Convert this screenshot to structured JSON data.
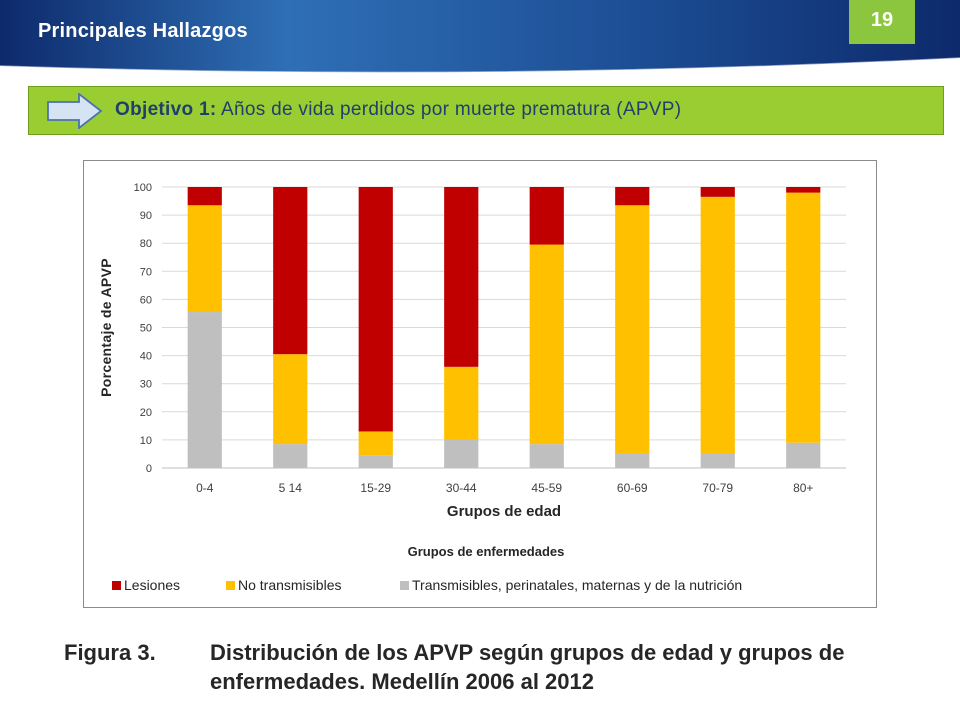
{
  "slide": {
    "title": "Principales Hallazgos",
    "page_number": "19",
    "objective_label": "Objetivo 1:",
    "objective_text": "Años de vida perdidos por muerte prematura (APVP)",
    "caption_label": "Figura 3.",
    "caption_text": "Distribución de los APVP según grupos de edad y grupos de enfermedades. Medellín 2006 al 2012"
  },
  "colors": {
    "header_dark": "#0d2a6b",
    "header_light": "#2f6fb5",
    "accent_green": "#8cc63f",
    "objective_bg": "#9acd32",
    "lesiones": "#c00000",
    "no_transmisibles": "#ffc000",
    "transmisibles": "#bfbfbf"
  },
  "chart_data": {
    "type": "bar",
    "stacked": true,
    "categories": [
      "0-4",
      "5 14",
      "15-29",
      "30-44",
      "45-59",
      "60-69",
      "70-79",
      "80+"
    ],
    "series": [
      {
        "name": "Transmisibles, perinatales, maternas y de la nutrición",
        "color": "#bfbfbf",
        "values": [
          55.5,
          8.5,
          4.5,
          10,
          8.5,
          5,
          5,
          9
        ]
      },
      {
        "name": "No transmisibles",
        "color": "#ffc000",
        "values": [
          38,
          32,
          8.5,
          26,
          71,
          88.5,
          91.5,
          89
        ]
      },
      {
        "name": "Lesiones",
        "color": "#c00000",
        "values": [
          6.5,
          59.5,
          87,
          64,
          20.5,
          6.5,
          3.5,
          2
        ]
      }
    ],
    "legend_order": [
      "Lesiones",
      "No transmisibles",
      "Transmisibles, perinatales, maternas y de la nutrición"
    ],
    "legend_title": "Grupos de enfermedades",
    "xlabel": "Grupos de edad",
    "ylabel": "Porcentaje de APVP",
    "ylim": [
      0,
      100
    ],
    "yticks": [
      0,
      10,
      20,
      30,
      40,
      50,
      60,
      70,
      80,
      90,
      100
    ],
    "grid": true,
    "legend_position": "bottom"
  }
}
